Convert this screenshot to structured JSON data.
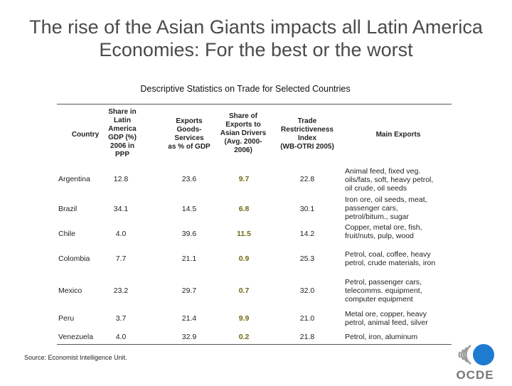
{
  "title_line1": "The rise of the Asian Giants impacts all Latin America",
  "title_line2": "Economies: For the best or the worst",
  "subtitle": "Descriptive Statistics  on Trade for Selected Countries",
  "headers": {
    "country": "Country",
    "gdp": [
      "Share  in",
      "Latin",
      "America",
      "GDP (%)",
      "2006 in",
      "PPP"
    ],
    "exports": [
      "Exports",
      "Goods-",
      "Services",
      "as % of GDP"
    ],
    "asian": [
      "Share of",
      "Exports to",
      "Asian Drivers",
      "(Avg. 2000-",
      "2006)"
    ],
    "tri": [
      "Trade",
      "Restrictiveness",
      "Index",
      "(WB-OTRI 2005)"
    ],
    "main": "Main Exports"
  },
  "rows": [
    {
      "country": "Argentina",
      "gdp": "12.8",
      "exports": "23.6",
      "asian": "9.7",
      "tri": "22.8",
      "main": [
        "Animal feed, fixed veg.",
        "oils/fats, soft, heavy petrol,",
        "oil crude, oil seeds"
      ]
    },
    {
      "country": "Brazil",
      "gdp": "34.1",
      "exports": "14.5",
      "asian": "6.8",
      "tri": "30.1",
      "main": [
        "Iron ore, oil seeds, meat,",
        "passenger cars,",
        "petrol/bitum., sugar"
      ]
    },
    {
      "country": "Chile",
      "gdp": "4.0",
      "exports": "39.6",
      "asian": "11.5",
      "tri": "14.2",
      "main": [
        "Copper, metal ore, fish,",
        "fruit/nuts, pulp, wood"
      ]
    },
    {
      "country": "Colombia",
      "gdp": "7.7",
      "exports": "21.1",
      "asian": "0.9",
      "tri": "25.3",
      "main": [
        "Petrol, coal, coffee, heavy",
        "petrol, crude  materials, iron"
      ]
    },
    {
      "country": "Mexico",
      "gdp": "23.2",
      "exports": "29.7",
      "asian": "0.7",
      "tri": "32.0",
      "main": [
        "Petrol, passenger cars,",
        "telecomms. equipment,",
        "computer equipment"
      ]
    },
    {
      "country": "Peru",
      "gdp": "3.7",
      "exports": "21.4",
      "asian": "9.9",
      "tri": "21.0",
      "main": [
        "Metal ore, copper, heavy",
        "petrol, animal feed, silver"
      ]
    },
    {
      "country": "Venezuela",
      "gdp": "4.0",
      "exports": "32.9",
      "asian": "0.2",
      "tri": "21.8",
      "main": [
        "Petrol, iron, aluminum"
      ]
    }
  ],
  "source": "Source: Economist Intelligence Unit.",
  "logo_text": "OCDE",
  "colors": {
    "asian_values": "#6e6a14",
    "logo_blue": "#1f7bd0"
  }
}
